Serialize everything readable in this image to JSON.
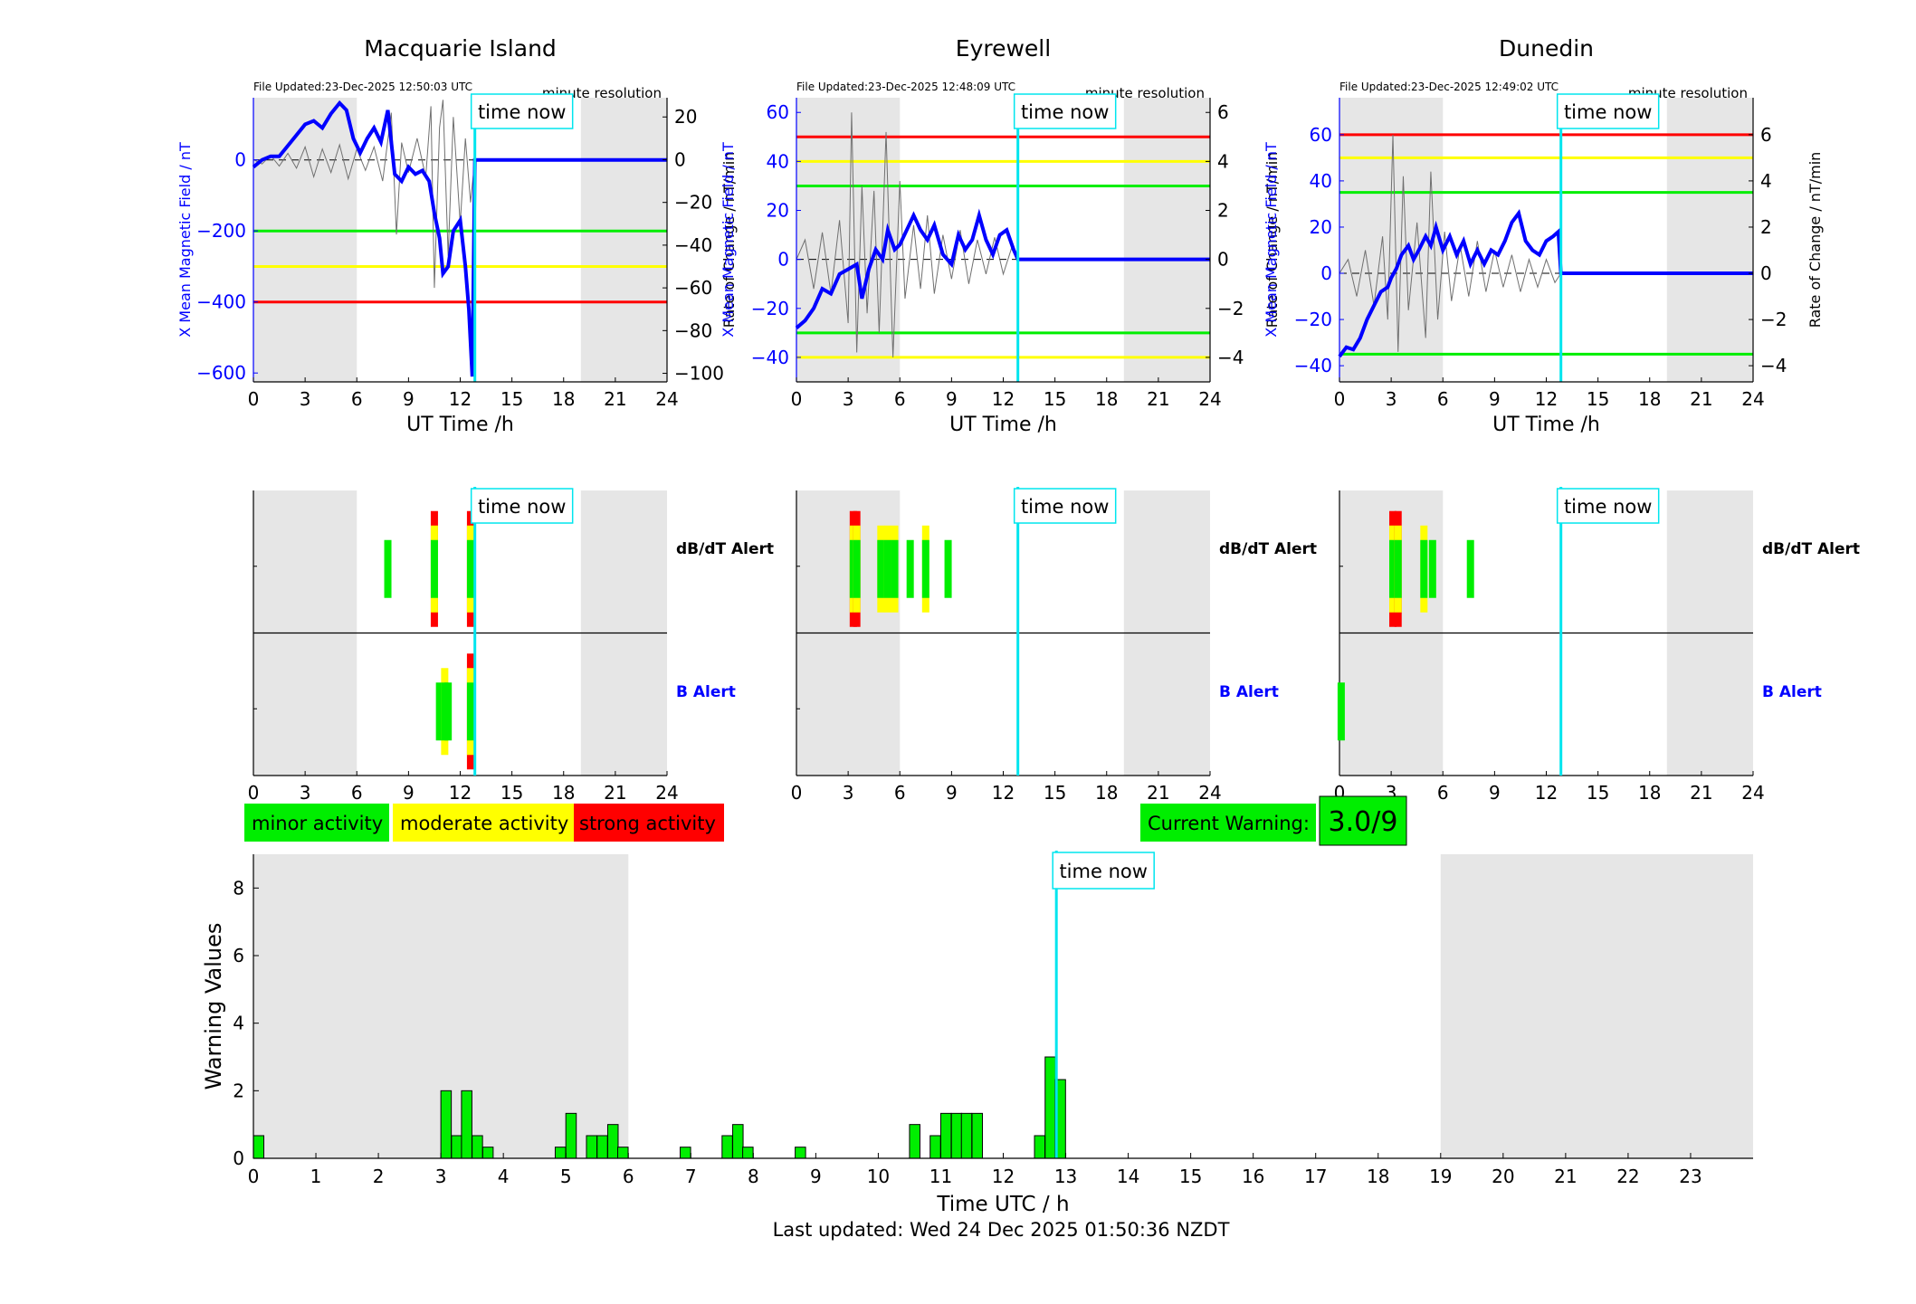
{
  "colors": {
    "minor": "#00ee00",
    "moderate": "#ffff00",
    "strong": "#ff0000",
    "mean_field": "#0000ff",
    "rate_trace": "#707070",
    "time_now": "#00e5ee",
    "night_shade": "#e6e6e6"
  },
  "stations": [
    {
      "name": "Macquarie Island",
      "file_updated": "File Updated:23-Dec-2025 12:50:03 UTC",
      "resolution": "minute resolution",
      "left_label": "X Mean Magnetic Field / nT",
      "right_label": "Rate of Change / nT/min",
      "xlabel": "UT Time /h",
      "left_ylim": [
        -625,
        175
      ],
      "left_ticks": [
        -600,
        -400,
        -200,
        0
      ],
      "right_ylim": [
        -104,
        29
      ],
      "right_ticks": [
        -100,
        -80,
        -60,
        -40,
        -20,
        0,
        20
      ],
      "thresholds": [
        {
          "level": "minor",
          "value": -200
        },
        {
          "level": "moderate",
          "value": -300
        },
        {
          "level": "strong",
          "value": -400
        }
      ],
      "mean_field": [
        [
          0,
          -20
        ],
        [
          0.5,
          0
        ],
        [
          1,
          10
        ],
        [
          1.5,
          10
        ],
        [
          2,
          40
        ],
        [
          2.5,
          70
        ],
        [
          3,
          100
        ],
        [
          3.5,
          110
        ],
        [
          4,
          90
        ],
        [
          4.5,
          130
        ],
        [
          5,
          160
        ],
        [
          5.4,
          140
        ],
        [
          5.8,
          60
        ],
        [
          6.2,
          20
        ],
        [
          6.6,
          60
        ],
        [
          7,
          90
        ],
        [
          7.4,
          50
        ],
        [
          7.8,
          140
        ],
        [
          8.2,
          -40
        ],
        [
          8.6,
          -60
        ],
        [
          9,
          -20
        ],
        [
          9.4,
          -40
        ],
        [
          9.8,
          -30
        ],
        [
          10.2,
          -60
        ],
        [
          10.5,
          -150
        ],
        [
          10.8,
          -220
        ],
        [
          11,
          -320
        ],
        [
          11.3,
          -300
        ],
        [
          11.6,
          -200
        ],
        [
          12,
          -170
        ],
        [
          12.3,
          -300
        ],
        [
          12.5,
          -420
        ],
        [
          12.7,
          -610
        ],
        [
          12.85,
          0
        ],
        [
          24,
          0
        ]
      ],
      "rate_series": [
        [
          0,
          0
        ],
        [
          0.5,
          -2
        ],
        [
          1,
          2
        ],
        [
          1.5,
          -3
        ],
        [
          2,
          3
        ],
        [
          2.5,
          -4
        ],
        [
          3,
          6
        ],
        [
          3.5,
          -8
        ],
        [
          4,
          5
        ],
        [
          4.5,
          -6
        ],
        [
          5,
          7
        ],
        [
          5.5,
          -9
        ],
        [
          6,
          5
        ],
        [
          6.5,
          -5
        ],
        [
          7,
          6
        ],
        [
          7.5,
          -10
        ],
        [
          8,
          22
        ],
        [
          8.3,
          -35
        ],
        [
          8.6,
          8
        ],
        [
          9,
          -6
        ],
        [
          9.5,
          10
        ],
        [
          10,
          -8
        ],
        [
          10.3,
          25
        ],
        [
          10.5,
          -60
        ],
        [
          10.8,
          15
        ],
        [
          11,
          28
        ],
        [
          11.3,
          -45
        ],
        [
          11.6,
          20
        ],
        [
          12,
          -30
        ],
        [
          12.3,
          10
        ],
        [
          12.6,
          -20
        ],
        [
          12.85,
          0
        ],
        [
          24,
          0
        ]
      ],
      "night_shading": [
        [
          0,
          6
        ],
        [
          19,
          24
        ]
      ],
      "time_now_hour": 12.85,
      "alerts_dbdt": [
        {
          "hour": 7.8,
          "level": 1
        },
        {
          "hour": 10.5,
          "level": 3
        },
        {
          "hour": 12.6,
          "level": 3
        }
      ],
      "alerts_b": [
        {
          "hour": 10.8,
          "level": 1
        },
        {
          "hour": 11.1,
          "level": 2
        },
        {
          "hour": 11.3,
          "level": 1
        },
        {
          "hour": 12.6,
          "level": 3
        }
      ]
    },
    {
      "name": "Eyrewell",
      "file_updated": "File Updated:23-Dec-2025 12:48:09 UTC",
      "resolution": "minute resolution",
      "left_label": "X Mean Magnetic Field / nT",
      "right_label": "Rate of Change / nT/min",
      "xlabel": "UT Time /h",
      "left_ylim": [
        -50,
        66
      ],
      "left_ticks": [
        -40,
        -20,
        0,
        20,
        40,
        60
      ],
      "right_ylim": [
        -5,
        6.6
      ],
      "right_ticks": [
        -4,
        -2,
        0,
        2,
        4,
        6
      ],
      "thresholds": [
        {
          "level": "strong",
          "value": 50
        },
        {
          "level": "moderate",
          "value": 40
        },
        {
          "level": "minor",
          "value": 30
        },
        {
          "level": "minor",
          "value": -30
        },
        {
          "level": "moderate",
          "value": -40
        }
      ],
      "mean_field": [
        [
          0,
          -28
        ],
        [
          0.5,
          -25
        ],
        [
          1,
          -20
        ],
        [
          1.5,
          -12
        ],
        [
          2,
          -14
        ],
        [
          2.5,
          -6
        ],
        [
          3,
          -4
        ],
        [
          3.5,
          -2
        ],
        [
          3.8,
          -16
        ],
        [
          4.2,
          -4
        ],
        [
          4.6,
          4
        ],
        [
          5,
          0
        ],
        [
          5.3,
          12
        ],
        [
          5.7,
          4
        ],
        [
          6,
          6
        ],
        [
          6.4,
          12
        ],
        [
          6.8,
          18
        ],
        [
          7.2,
          12
        ],
        [
          7.6,
          8
        ],
        [
          8,
          14
        ],
        [
          8.5,
          2
        ],
        [
          9,
          -2
        ],
        [
          9.4,
          10
        ],
        [
          9.8,
          4
        ],
        [
          10.2,
          8
        ],
        [
          10.6,
          18
        ],
        [
          11,
          8
        ],
        [
          11.4,
          2
        ],
        [
          11.8,
          10
        ],
        [
          12.2,
          12
        ],
        [
          12.6,
          4
        ],
        [
          12.85,
          0
        ],
        [
          24,
          0
        ]
      ],
      "rate_series": [
        [
          0,
          0
        ],
        [
          0.5,
          0.8
        ],
        [
          1,
          -1.2
        ],
        [
          1.5,
          1.1
        ],
        [
          2,
          -1.4
        ],
        [
          2.5,
          1.6
        ],
        [
          3,
          -2.6
        ],
        [
          3.2,
          6.0
        ],
        [
          3.5,
          -3.8
        ],
        [
          3.8,
          3.0
        ],
        [
          4.1,
          -2.2
        ],
        [
          4.5,
          2.8
        ],
        [
          4.8,
          -3.0
        ],
        [
          5.2,
          5.2
        ],
        [
          5.6,
          -4.0
        ],
        [
          6,
          3.2
        ],
        [
          6.3,
          -1.6
        ],
        [
          6.8,
          1.4
        ],
        [
          7.2,
          -1.2
        ],
        [
          7.6,
          1.8
        ],
        [
          8,
          -1.4
        ],
        [
          8.5,
          1.0
        ],
        [
          9,
          -0.8
        ],
        [
          9.5,
          1.2
        ],
        [
          10,
          -1.0
        ],
        [
          10.5,
          0.8
        ],
        [
          11,
          -0.6
        ],
        [
          11.5,
          0.9
        ],
        [
          12,
          -0.6
        ],
        [
          12.5,
          0.5
        ],
        [
          12.85,
          0
        ],
        [
          24,
          0
        ]
      ],
      "night_shading": [
        [
          0,
          6
        ],
        [
          19,
          24
        ]
      ],
      "time_now_hour": 12.85,
      "alerts_dbdt": [
        {
          "hour": 3.3,
          "level": 3
        },
        {
          "hour": 3.5,
          "level": 3
        },
        {
          "hour": 4.9,
          "level": 2
        },
        {
          "hour": 5.3,
          "level": 2
        },
        {
          "hour": 5.7,
          "level": 2
        },
        {
          "hour": 6.6,
          "level": 1
        },
        {
          "hour": 7.5,
          "level": 2
        },
        {
          "hour": 8.8,
          "level": 1
        }
      ],
      "alerts_b": []
    },
    {
      "name": "Dunedin",
      "file_updated": "File Updated:23-Dec-2025 12:49:02 UTC",
      "resolution": "minute resolution",
      "left_label": "X Mean Magnetic Field / nT",
      "right_label": "Rate of Change / nT/min",
      "xlabel": "UT Time /h",
      "left_ylim": [
        -47,
        76
      ],
      "left_ticks": [
        -40,
        -20,
        0,
        20,
        40,
        60
      ],
      "right_ylim": [
        -4.7,
        7.6
      ],
      "right_ticks": [
        -4,
        -2,
        0,
        2,
        4,
        6
      ],
      "thresholds": [
        {
          "level": "strong",
          "value": 60
        },
        {
          "level": "moderate",
          "value": 50
        },
        {
          "level": "minor",
          "value": 35
        },
        {
          "level": "minor",
          "value": -35
        }
      ],
      "mean_field": [
        [
          0,
          -36
        ],
        [
          0.4,
          -32
        ],
        [
          0.8,
          -33
        ],
        [
          1.2,
          -28
        ],
        [
          1.6,
          -20
        ],
        [
          2,
          -14
        ],
        [
          2.4,
          -8
        ],
        [
          2.8,
          -6
        ],
        [
          3,
          -2
        ],
        [
          3.3,
          2
        ],
        [
          3.6,
          8
        ],
        [
          4,
          12
        ],
        [
          4.3,
          6
        ],
        [
          4.6,
          10
        ],
        [
          5,
          16
        ],
        [
          5.3,
          12
        ],
        [
          5.6,
          20
        ],
        [
          6,
          10
        ],
        [
          6.4,
          16
        ],
        [
          6.8,
          8
        ],
        [
          7.2,
          14
        ],
        [
          7.6,
          4
        ],
        [
          8,
          10
        ],
        [
          8.4,
          4
        ],
        [
          8.8,
          10
        ],
        [
          9.2,
          8
        ],
        [
          9.6,
          14
        ],
        [
          10,
          22
        ],
        [
          10.4,
          26
        ],
        [
          10.8,
          14
        ],
        [
          11.2,
          10
        ],
        [
          11.6,
          8
        ],
        [
          12,
          14
        ],
        [
          12.4,
          16
        ],
        [
          12.7,
          18
        ],
        [
          12.85,
          0
        ],
        [
          24,
          0
        ]
      ],
      "rate_series": [
        [
          0,
          0
        ],
        [
          0.5,
          0.6
        ],
        [
          1,
          -1.0
        ],
        [
          1.5,
          1.0
        ],
        [
          2,
          -1.4
        ],
        [
          2.5,
          1.6
        ],
        [
          2.8,
          -2.0
        ],
        [
          3.1,
          6.0
        ],
        [
          3.4,
          -3.4
        ],
        [
          3.7,
          4.2
        ],
        [
          4.0,
          -1.6
        ],
        [
          4.5,
          2.2
        ],
        [
          5.0,
          -2.8
        ],
        [
          5.3,
          4.4
        ],
        [
          5.7,
          -2.0
        ],
        [
          6.1,
          1.8
        ],
        [
          6.5,
          -1.2
        ],
        [
          7,
          1.2
        ],
        [
          7.5,
          -1.0
        ],
        [
          8,
          1.4
        ],
        [
          8.5,
          -0.8
        ],
        [
          9,
          1.0
        ],
        [
          9.5,
          -0.6
        ],
        [
          10,
          0.8
        ],
        [
          10.5,
          -0.8
        ],
        [
          11,
          0.6
        ],
        [
          11.5,
          -0.6
        ],
        [
          12,
          0.6
        ],
        [
          12.5,
          -0.4
        ],
        [
          12.85,
          0
        ],
        [
          24,
          0
        ]
      ],
      "night_shading": [
        [
          0,
          6
        ],
        [
          19,
          24
        ]
      ],
      "time_now_hour": 12.85,
      "alerts_dbdt": [
        {
          "hour": 3.1,
          "level": 3
        },
        {
          "hour": 3.4,
          "level": 3
        },
        {
          "hour": 4.9,
          "level": 2
        },
        {
          "hour": 5.4,
          "level": 1
        },
        {
          "hour": 7.6,
          "level": 1
        }
      ],
      "alerts_b": [
        {
          "hour": 0.1,
          "level": 1
        }
      ]
    }
  ],
  "shared_axis": {
    "hour_ticks": [
      0,
      3,
      6,
      9,
      12,
      15,
      18,
      21,
      24
    ],
    "xlim": [
      0,
      24
    ]
  },
  "time_now_label": "time now",
  "alert_labels": {
    "dbdt": "dB/dT Alert",
    "b": "B Alert"
  },
  "legend": {
    "minor": "minor activity",
    "moderate": "moderate activity",
    "strong": "strong activity"
  },
  "current_warning": {
    "label": "Current Warning:",
    "value": "3.0/9"
  },
  "chart_data": {
    "type": "bar",
    "xlabel": "Time UTC / h",
    "ylabel": "Warning Values",
    "xlim": [
      0,
      24
    ],
    "ylim": [
      0,
      9
    ],
    "x_ticks": [
      0,
      1,
      2,
      3,
      4,
      5,
      6,
      7,
      8,
      9,
      10,
      11,
      12,
      13,
      14,
      15,
      16,
      17,
      18,
      19,
      20,
      21,
      22,
      23
    ],
    "y_ticks": [
      0,
      2,
      4,
      6,
      8
    ],
    "night_shading": [
      [
        0,
        6
      ],
      [
        19,
        24
      ]
    ],
    "time_now_hour": 12.85,
    "bar_width_h": 0.1667,
    "values": [
      [
        0,
        0.67
      ],
      [
        3,
        2
      ],
      [
        3.17,
        0.67
      ],
      [
        3.33,
        2
      ],
      [
        3.5,
        0.67
      ],
      [
        3.67,
        0.33
      ],
      [
        4.83,
        0.33
      ],
      [
        5,
        1.33
      ],
      [
        5.17,
        0
      ],
      [
        5.33,
        0.67
      ],
      [
        5.5,
        0.67
      ],
      [
        5.67,
        1
      ],
      [
        5.83,
        0.33
      ],
      [
        6.83,
        0.33
      ],
      [
        7.5,
        0.67
      ],
      [
        7.67,
        1
      ],
      [
        7.83,
        0.33
      ],
      [
        8.67,
        0.33
      ],
      [
        10.5,
        1
      ],
      [
        10.83,
        0.67
      ],
      [
        11,
        1.33
      ],
      [
        11.17,
        1.33
      ],
      [
        11.33,
        1.33
      ],
      [
        11.5,
        1.33
      ],
      [
        12.5,
        0.67
      ],
      [
        12.67,
        3
      ],
      [
        12.83,
        2.33
      ]
    ]
  },
  "footer": "Last updated: Wed 24 Dec 2025 01:50:36 NZDT"
}
